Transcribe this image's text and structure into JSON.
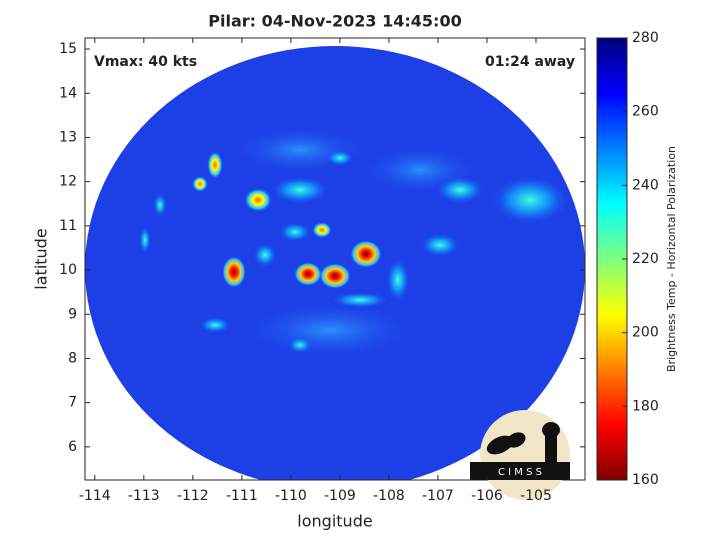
{
  "chart_data": {
    "type": "map",
    "title": "Pilar: 04-Nov-2023 14:45:00",
    "xlabel": "longitude",
    "ylabel": "latitude",
    "xlim": [
      -114.2,
      -104.0
    ],
    "ylim": [
      5.25,
      15.25
    ],
    "xticks": [
      -114,
      -113,
      -112,
      -111,
      -110,
      -109,
      -108,
      -107,
      -106,
      -105
    ],
    "yticks": [
      6,
      7,
      8,
      9,
      10,
      11,
      12,
      13,
      14,
      15
    ],
    "annotations": [
      "Vmax: 40 kts",
      "01:24 away"
    ],
    "background_color": "#1d3fe6",
    "colorbar": {
      "label": "Brightness Temp - Horizontal Polarization",
      "lim": [
        160,
        280
      ],
      "ticks": [
        160,
        180,
        200,
        220,
        240,
        260,
        280
      ],
      "colormap": [
        "#7f0000",
        "#ff0000",
        "#ff7f00",
        "#ffff00",
        "#7fff7f",
        "#00ffff",
        "#007fff",
        "#0000ff",
        "#00007f"
      ]
    },
    "logo": "C I M S S"
  }
}
